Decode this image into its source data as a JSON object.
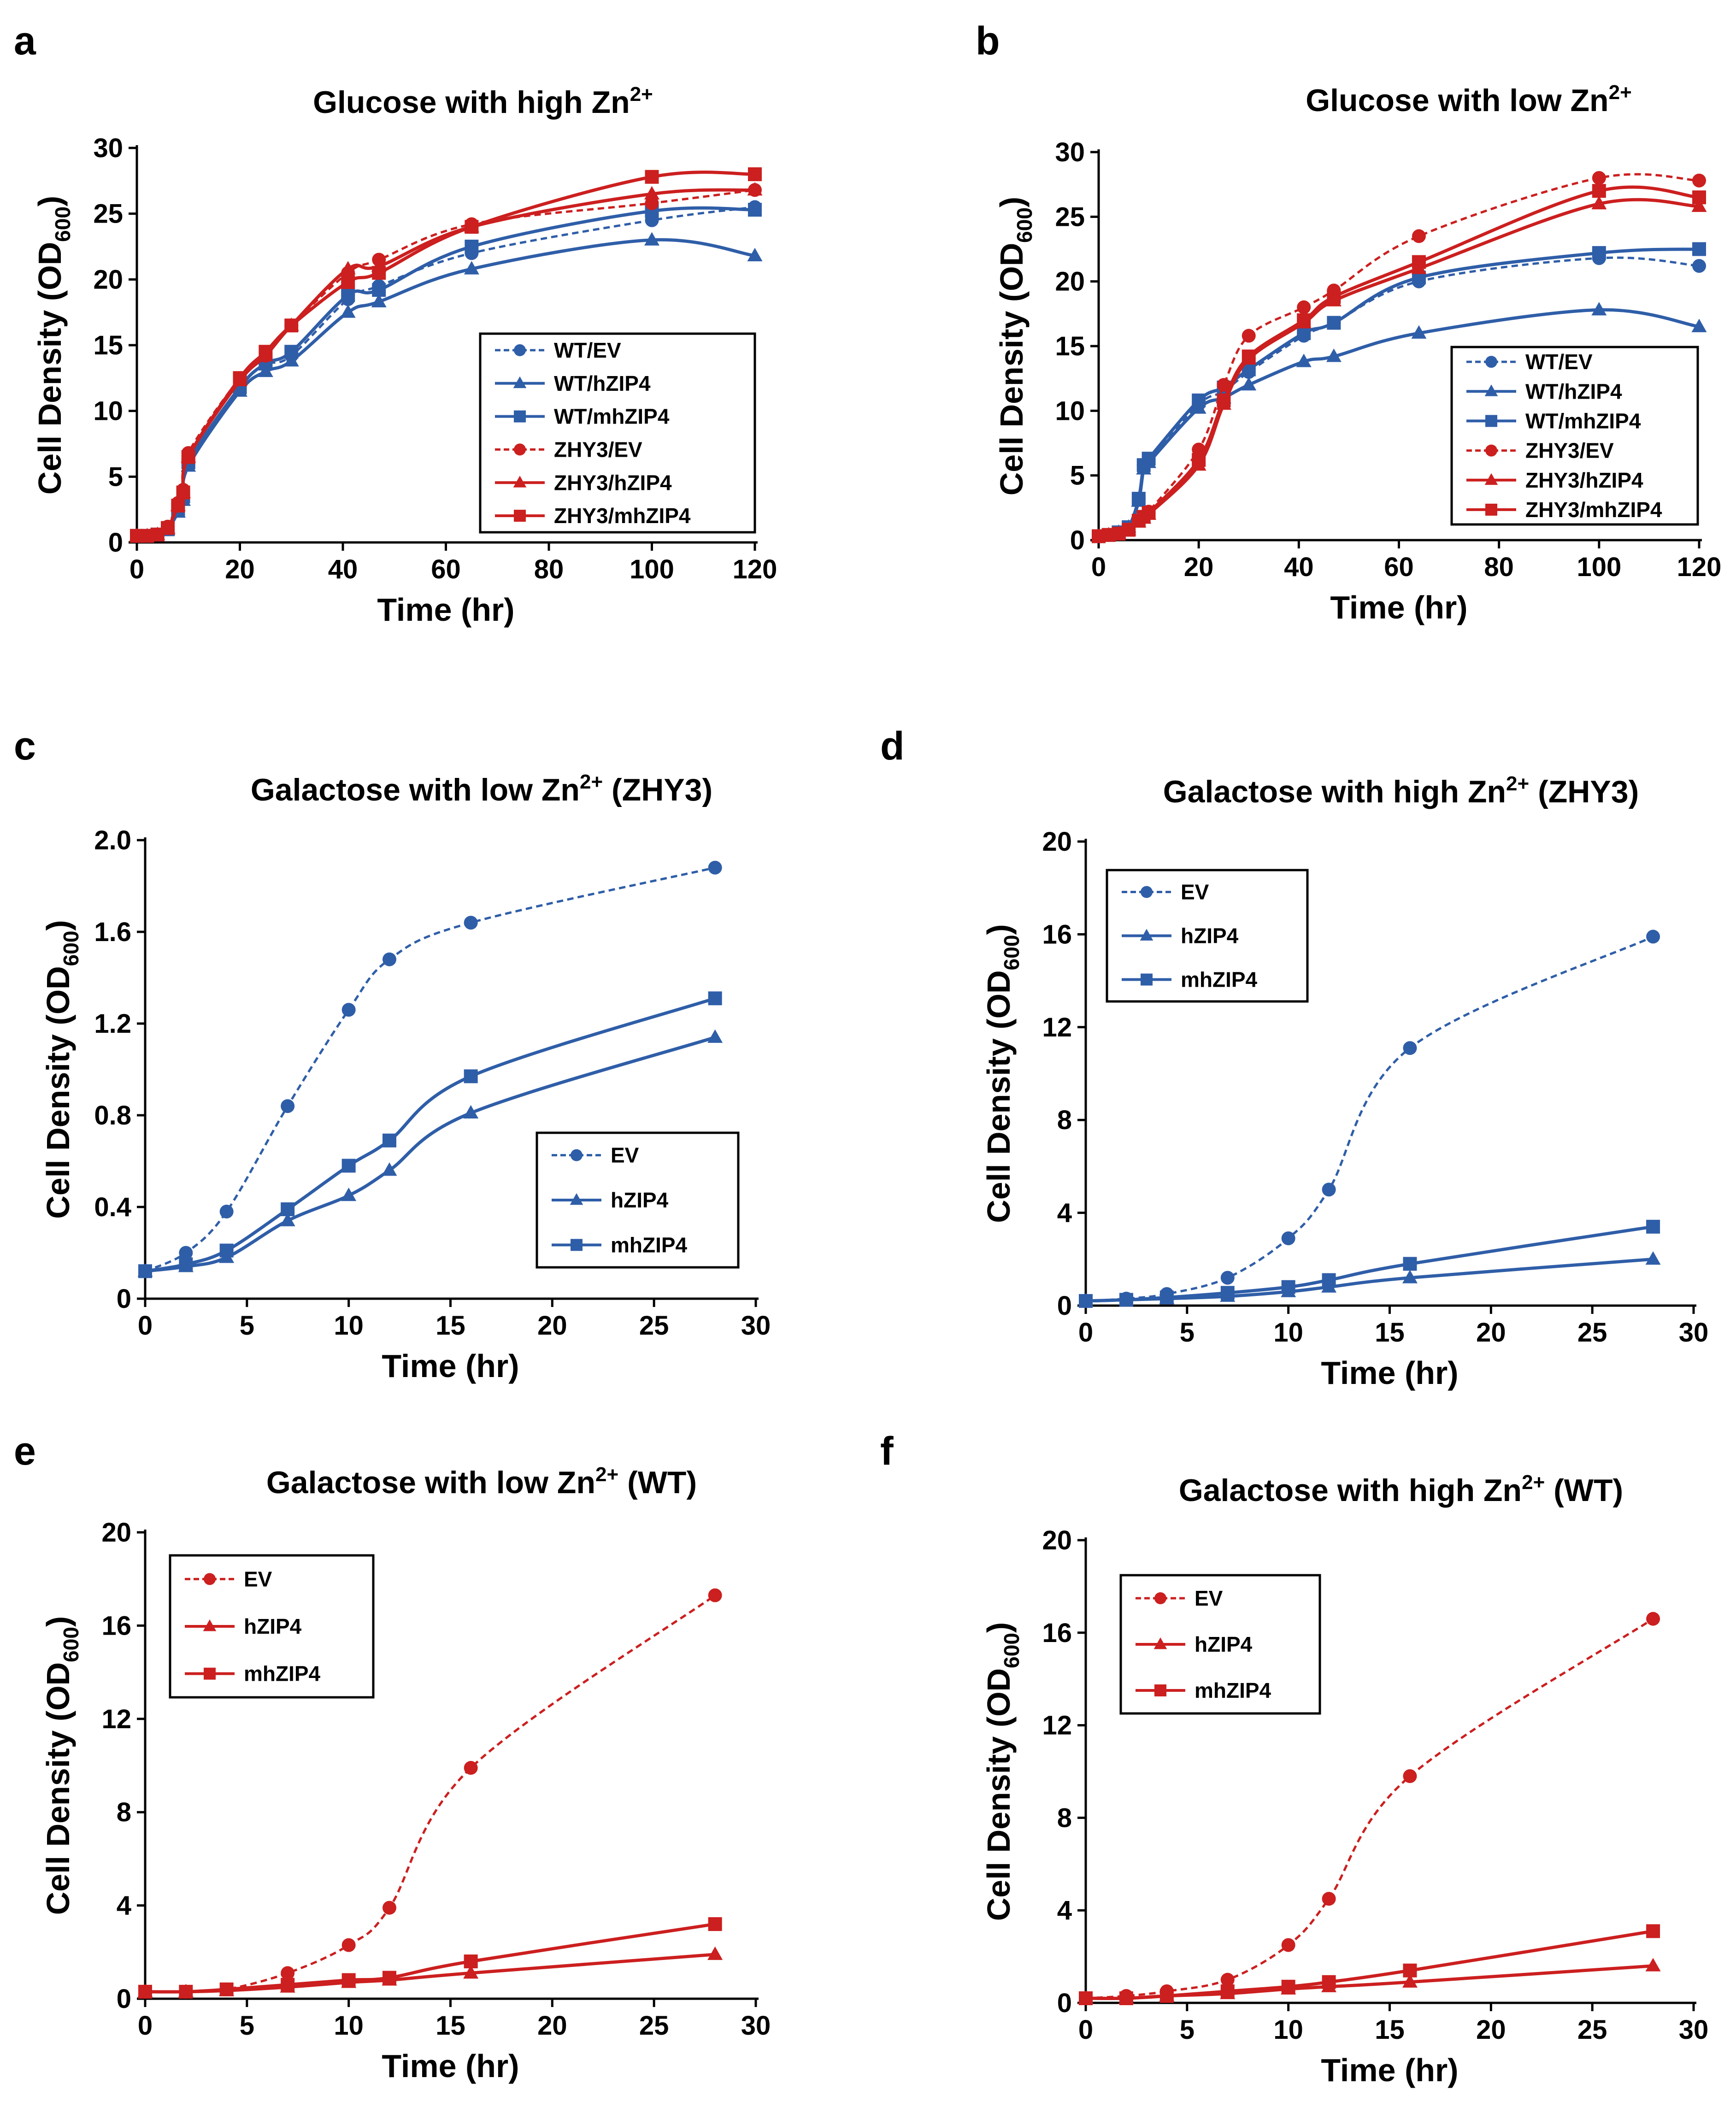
{
  "colors": {
    "blue": "#2f5ea8",
    "red": "#cc1f1f",
    "axis": "#000000"
  },
  "chart_data": [
    {
      "id": "a",
      "panel_letter": "a",
      "type": "line",
      "title": "Glucose with high Zn",
      "title_sup": "2+",
      "title_suffix": "",
      "xlabel": "Time (hr)",
      "ylabel": "Cell Density (OD",
      "ylabel_sub": "600",
      "ylabel_end": ")",
      "xlim": [
        0,
        120
      ],
      "ylim": [
        0,
        30
      ],
      "xticks": [
        0,
        20,
        40,
        60,
        80,
        100,
        120
      ],
      "yticks": [
        0,
        5,
        10,
        15,
        20,
        25,
        30
      ],
      "legend_position": "center-right",
      "series": [
        {
          "name": "WT/EV",
          "color": "blue",
          "dashed": true,
          "marker": "circle",
          "x": [
            0,
            2,
            4,
            6,
            8,
            9,
            10,
            20,
            25,
            30,
            41,
            47,
            65,
            100,
            120
          ],
          "y": [
            0.5,
            0.5,
            0.6,
            1.0,
            2.5,
            3.5,
            6.0,
            11.8,
            13.5,
            14.2,
            18.5,
            19.5,
            22.0,
            24.5,
            25.5
          ]
        },
        {
          "name": "WT/hZIP4",
          "color": "blue",
          "dashed": false,
          "marker": "triangle",
          "x": [
            0,
            2,
            4,
            6,
            8,
            9,
            10,
            20,
            25,
            30,
            41,
            47,
            65,
            100,
            120
          ],
          "y": [
            0.5,
            0.5,
            0.6,
            1.0,
            2.3,
            3.2,
            5.8,
            11.5,
            13.0,
            13.8,
            17.5,
            18.3,
            20.8,
            23.0,
            21.8
          ]
        },
        {
          "name": "WT/mhZIP4",
          "color": "blue",
          "dashed": false,
          "marker": "square",
          "x": [
            0,
            2,
            4,
            6,
            8,
            9,
            10,
            20,
            25,
            30,
            41,
            47,
            65,
            100,
            120
          ],
          "y": [
            0.5,
            0.5,
            0.6,
            1.0,
            2.5,
            3.5,
            6.1,
            11.8,
            13.6,
            14.5,
            18.8,
            19.2,
            22.5,
            25.2,
            25.3
          ]
        },
        {
          "name": "ZHY3/EV",
          "color": "red",
          "dashed": true,
          "marker": "circle",
          "x": [
            0,
            2,
            4,
            6,
            8,
            9,
            10,
            20,
            25,
            30,
            41,
            47,
            65,
            100,
            120
          ],
          "y": [
            0.5,
            0.5,
            0.6,
            1.2,
            3.0,
            4.0,
            6.8,
            12.5,
            14.2,
            16.5,
            20.5,
            21.5,
            24.2,
            25.8,
            26.8
          ]
        },
        {
          "name": "ZHY3/hZIP4",
          "color": "red",
          "dashed": false,
          "marker": "triangle",
          "x": [
            0,
            2,
            4,
            6,
            8,
            9,
            10,
            20,
            25,
            30,
            41,
            47,
            65,
            100,
            120
          ],
          "y": [
            0.5,
            0.5,
            0.6,
            1.1,
            2.8,
            3.8,
            6.5,
            12.3,
            14.2,
            16.5,
            20.8,
            21.0,
            24.0,
            26.5,
            26.8
          ]
        },
        {
          "name": "ZHY3/mhZIP4",
          "color": "red",
          "dashed": false,
          "marker": "square",
          "x": [
            0,
            2,
            4,
            6,
            8,
            9,
            10,
            20,
            25,
            30,
            41,
            47,
            65,
            100,
            120
          ],
          "y": [
            0.5,
            0.5,
            0.6,
            1.1,
            2.8,
            3.8,
            6.5,
            12.5,
            14.5,
            16.5,
            19.8,
            20.5,
            24.0,
            27.8,
            28.0
          ]
        }
      ]
    },
    {
      "id": "b",
      "panel_letter": "b",
      "type": "line",
      "title": "Glucose with low Zn",
      "title_sup": "2+",
      "title_suffix": "",
      "xlabel": "Time (hr)",
      "ylabel": "Cell Density (OD",
      "ylabel_sub": "600",
      "ylabel_end": ")",
      "xlim": [
        0,
        120
      ],
      "ylim": [
        0,
        30
      ],
      "xticks": [
        0,
        20,
        40,
        60,
        80,
        100,
        120
      ],
      "yticks": [
        0,
        5,
        10,
        15,
        20,
        25,
        30
      ],
      "legend_position": "center-right",
      "series": [
        {
          "name": "WT/EV",
          "color": "blue",
          "dashed": true,
          "marker": "circle",
          "x": [
            0,
            2,
            4,
            6,
            8,
            9,
            10,
            20,
            25,
            30,
            41,
            47,
            64,
            100,
            120
          ],
          "y": [
            0.3,
            0.4,
            0.6,
            1.0,
            3.2,
            5.8,
            6.2,
            10.5,
            11.5,
            13.0,
            15.8,
            16.8,
            20.0,
            21.8,
            21.2
          ]
        },
        {
          "name": "WT/hZIP4",
          "color": "blue",
          "dashed": false,
          "marker": "triangle",
          "x": [
            0,
            2,
            4,
            6,
            8,
            9,
            10,
            20,
            25,
            30,
            41,
            47,
            64,
            100,
            120
          ],
          "y": [
            0.3,
            0.4,
            0.6,
            1.0,
            3.0,
            5.5,
            6.0,
            10.2,
            11.0,
            12.0,
            13.8,
            14.2,
            16.0,
            17.8,
            16.5
          ]
        },
        {
          "name": "WT/mhZIP4",
          "color": "blue",
          "dashed": false,
          "marker": "square",
          "x": [
            0,
            2,
            4,
            6,
            8,
            9,
            10,
            20,
            25,
            30,
            41,
            47,
            64,
            100,
            120
          ],
          "y": [
            0.3,
            0.4,
            0.6,
            1.0,
            3.2,
            5.8,
            6.3,
            10.8,
            11.8,
            13.2,
            16.0,
            16.8,
            20.3,
            22.2,
            22.5
          ]
        },
        {
          "name": "ZHY3/EV",
          "color": "red",
          "dashed": true,
          "marker": "circle",
          "x": [
            0,
            2,
            4,
            6,
            8,
            9,
            10,
            20,
            25,
            30,
            41,
            47,
            64,
            100,
            120
          ],
          "y": [
            0.3,
            0.4,
            0.5,
            0.8,
            1.5,
            1.8,
            2.2,
            7.0,
            12.0,
            15.8,
            18.0,
            19.3,
            23.5,
            28.0,
            27.8
          ]
        },
        {
          "name": "ZHY3/hZIP4",
          "color": "red",
          "dashed": false,
          "marker": "triangle",
          "x": [
            0,
            2,
            4,
            6,
            8,
            9,
            10,
            20,
            25,
            30,
            41,
            47,
            64,
            100,
            120
          ],
          "y": [
            0.3,
            0.4,
            0.5,
            0.8,
            1.4,
            1.7,
            2.0,
            5.8,
            10.5,
            14.0,
            16.8,
            18.5,
            21.0,
            26.0,
            25.8
          ]
        },
        {
          "name": "ZHY3/mhZIP4",
          "color": "red",
          "dashed": false,
          "marker": "square",
          "x": [
            0,
            2,
            4,
            6,
            8,
            9,
            10,
            20,
            25,
            30,
            41,
            47,
            64,
            100,
            120
          ],
          "y": [
            0.3,
            0.4,
            0.5,
            0.8,
            1.5,
            1.8,
            2.1,
            6.2,
            10.8,
            14.2,
            17.0,
            18.8,
            21.5,
            27.0,
            26.5
          ]
        }
      ]
    },
    {
      "id": "c",
      "panel_letter": "c",
      "type": "line",
      "title": "Galactose with low Zn",
      "title_sup": "2+",
      "title_suffix": " (ZHY3)",
      "xlabel": "Time (hr)",
      "ylabel": "Cell Density (OD",
      "ylabel_sub": "600",
      "ylabel_end": ")",
      "xlim": [
        0,
        30
      ],
      "ylim": [
        0,
        2.0
      ],
      "xticks": [
        0,
        5,
        10,
        15,
        20,
        25,
        30
      ],
      "yticks": [
        "0",
        "0.4",
        "0.8",
        "1.2",
        "1.6",
        "2.0"
      ],
      "legend_position": "bottom-right",
      "series": [
        {
          "name": "EV",
          "color": "blue",
          "dashed": true,
          "marker": "circle",
          "x": [
            0,
            2,
            4,
            7,
            10,
            12,
            16,
            28
          ],
          "y": [
            0.12,
            0.2,
            0.38,
            0.84,
            1.26,
            1.48,
            1.64,
            1.88
          ]
        },
        {
          "name": "hZIP4",
          "color": "blue",
          "dashed": false,
          "marker": "triangle",
          "x": [
            0,
            2,
            4,
            7,
            10,
            12,
            16,
            28
          ],
          "y": [
            0.12,
            0.14,
            0.18,
            0.34,
            0.45,
            0.56,
            0.81,
            1.14
          ]
        },
        {
          "name": "mhZIP4",
          "color": "blue",
          "dashed": false,
          "marker": "square",
          "x": [
            0,
            2,
            4,
            7,
            10,
            12,
            16,
            28
          ],
          "y": [
            0.12,
            0.15,
            0.21,
            0.39,
            0.58,
            0.69,
            0.97,
            1.31
          ]
        }
      ]
    },
    {
      "id": "d",
      "panel_letter": "d",
      "type": "line",
      "title": "Galactose with high Zn",
      "title_sup": "2+",
      "title_suffix": " (ZHY3)",
      "xlabel": "Time (hr)",
      "ylabel": "Cell Density (OD",
      "ylabel_sub": "600",
      "ylabel_end": ")",
      "xlim": [
        0,
        30
      ],
      "ylim": [
        0,
        20
      ],
      "xticks": [
        0,
        5,
        10,
        15,
        20,
        25,
        30
      ],
      "yticks": [
        0,
        4,
        8,
        12,
        16,
        20
      ],
      "legend_position": "top-left",
      "series": [
        {
          "name": "EV",
          "color": "blue",
          "dashed": true,
          "marker": "circle",
          "x": [
            0,
            2,
            4,
            7,
            10,
            12,
            16,
            28
          ],
          "y": [
            0.2,
            0.3,
            0.5,
            1.2,
            2.9,
            5.0,
            11.1,
            15.9
          ]
        },
        {
          "name": "hZIP4",
          "color": "blue",
          "dashed": false,
          "marker": "triangle",
          "x": [
            0,
            2,
            4,
            7,
            10,
            12,
            16,
            28
          ],
          "y": [
            0.2,
            0.25,
            0.3,
            0.4,
            0.6,
            0.8,
            1.2,
            2.0
          ]
        },
        {
          "name": "mhZIP4",
          "color": "blue",
          "dashed": false,
          "marker": "square",
          "x": [
            0,
            2,
            4,
            7,
            10,
            12,
            16,
            28
          ],
          "y": [
            0.2,
            0.25,
            0.35,
            0.55,
            0.8,
            1.1,
            1.8,
            3.4
          ]
        }
      ]
    },
    {
      "id": "e",
      "panel_letter": "e",
      "type": "line",
      "title": "Galactose with low Zn",
      "title_sup": "2+",
      "title_suffix": " (WT)",
      "xlabel": "Time (hr)",
      "ylabel": "Cell Density (OD",
      "ylabel_sub": "600",
      "ylabel_end": ")",
      "xlim": [
        0,
        30
      ],
      "ylim": [
        0,
        20
      ],
      "xticks": [
        0,
        5,
        10,
        15,
        20,
        25,
        30
      ],
      "yticks": [
        0,
        4,
        8,
        12,
        16,
        20
      ],
      "legend_position": "top-left",
      "series": [
        {
          "name": "EV",
          "color": "red",
          "dashed": true,
          "marker": "circle",
          "x": [
            0,
            2,
            4,
            7,
            10,
            12,
            16,
            28
          ],
          "y": [
            0.3,
            0.3,
            0.4,
            1.1,
            2.3,
            3.9,
            9.9,
            17.3
          ]
        },
        {
          "name": "hZIP4",
          "color": "red",
          "dashed": false,
          "marker": "triangle",
          "x": [
            0,
            2,
            4,
            7,
            10,
            12,
            16,
            28
          ],
          "y": [
            0.3,
            0.3,
            0.35,
            0.5,
            0.7,
            0.8,
            1.1,
            1.9
          ]
        },
        {
          "name": "mhZIP4",
          "color": "red",
          "dashed": false,
          "marker": "square",
          "x": [
            0,
            2,
            4,
            7,
            10,
            12,
            16,
            28
          ],
          "y": [
            0.3,
            0.3,
            0.4,
            0.6,
            0.8,
            0.9,
            1.6,
            3.2
          ]
        }
      ]
    },
    {
      "id": "f",
      "panel_letter": "f",
      "type": "line",
      "title": "Galactose with high Zn",
      "title_sup": "2+",
      "title_suffix": " (WT)",
      "xlabel": "Time (hr)",
      "ylabel": "Cell Density (OD",
      "ylabel_sub": "600",
      "ylabel_end": ")",
      "xlim": [
        0,
        30
      ],
      "ylim": [
        0,
        20
      ],
      "xticks": [
        0,
        5,
        10,
        15,
        20,
        25,
        30
      ],
      "yticks": [
        0,
        4,
        8,
        12,
        16,
        20
      ],
      "legend_position": "top-left",
      "series": [
        {
          "name": "EV",
          "color": "red",
          "dashed": true,
          "marker": "circle",
          "x": [
            0,
            2,
            4,
            7,
            10,
            12,
            16,
            28
          ],
          "y": [
            0.2,
            0.3,
            0.5,
            1.0,
            2.5,
            4.5,
            9.8,
            16.6
          ]
        },
        {
          "name": "hZIP4",
          "color": "red",
          "dashed": false,
          "marker": "triangle",
          "x": [
            0,
            2,
            4,
            7,
            10,
            12,
            16,
            28
          ],
          "y": [
            0.2,
            0.2,
            0.3,
            0.4,
            0.6,
            0.7,
            0.9,
            1.6
          ]
        },
        {
          "name": "mhZIP4",
          "color": "red",
          "dashed": false,
          "marker": "square",
          "x": [
            0,
            2,
            4,
            7,
            10,
            12,
            16,
            28
          ],
          "y": [
            0.2,
            0.2,
            0.3,
            0.5,
            0.7,
            0.9,
            1.4,
            3.1
          ]
        }
      ]
    }
  ]
}
